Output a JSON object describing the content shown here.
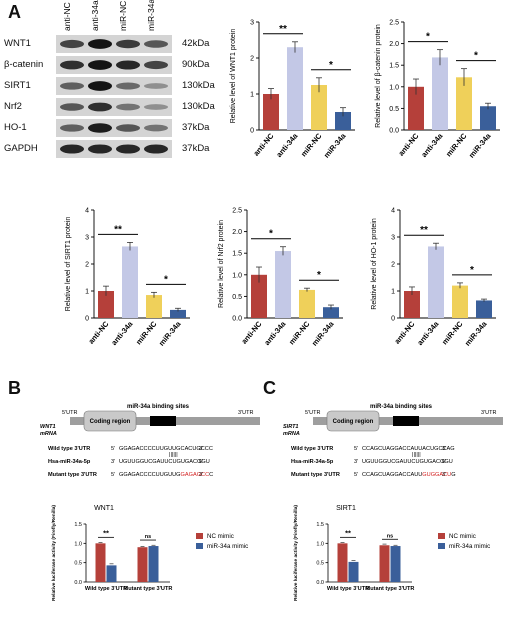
{
  "panels": {
    "a": "A",
    "b": "B",
    "c": "C"
  },
  "colors": {
    "anti_nc": "#b5403a",
    "anti_34a": "#c3c8e6",
    "mir_nc": "#efd05a",
    "mir_34a": "#3a5f9a",
    "nc_mimic": "#b5403a",
    "mir_mimic": "#3a5f9a"
  },
  "blot": {
    "lanes": [
      "anti-NC",
      "anti-34a",
      "miR-NC",
      "miR-34a"
    ],
    "rows": [
      {
        "protein": "WNT1",
        "size": "42kDa",
        "intensity": [
          0.7,
          0.95,
          0.75,
          0.6
        ]
      },
      {
        "protein": "β-catenin",
        "size": "90kDa",
        "intensity": [
          0.8,
          0.95,
          0.85,
          0.7
        ]
      },
      {
        "protein": "SIRT1",
        "size": "130kDa",
        "intensity": [
          0.55,
          0.95,
          0.5,
          0.3
        ]
      },
      {
        "protein": "Nrf2",
        "size": "130kDa",
        "intensity": [
          0.6,
          0.8,
          0.45,
          0.3
        ]
      },
      {
        "protein": "HO-1",
        "size": "37kDa",
        "intensity": [
          0.55,
          0.9,
          0.6,
          0.45
        ]
      },
      {
        "protein": "GAPDH",
        "size": "37kDa",
        "intensity": [
          0.85,
          0.85,
          0.85,
          0.85
        ]
      }
    ]
  },
  "chart_data": [
    {
      "type": "bar",
      "ylabel": "Relative level of WNT1 protein",
      "categories": [
        "anti-NC",
        "anti-34a",
        "miR-NC",
        "miR-34a"
      ],
      "values": [
        1.0,
        2.3,
        1.25,
        0.5
      ],
      "errors": [
        0.15,
        0.15,
        0.2,
        0.12
      ],
      "ylim": [
        0,
        3
      ],
      "yticks": [
        "0",
        "1",
        "2",
        "3"
      ],
      "sig": [
        {
          "label": "**",
          "pair": [
            0,
            1
          ]
        },
        {
          "label": "*",
          "pair": [
            2,
            3
          ]
        }
      ]
    },
    {
      "type": "bar",
      "ylabel": "Relative level of β-catenin protein",
      "categories": [
        "anti-NC",
        "anti-34a",
        "miR-NC",
        "miR-34a"
      ],
      "values": [
        1.0,
        1.68,
        1.22,
        0.55
      ],
      "errors": [
        0.18,
        0.18,
        0.2,
        0.07
      ],
      "ylim": [
        0,
        2.5
      ],
      "yticks": [
        "0.0",
        "0.5",
        "1.0",
        "1.5",
        "2.0",
        "2.5"
      ],
      "sig": [
        {
          "label": "*",
          "pair": [
            0,
            1
          ]
        },
        {
          "label": "*",
          "pair": [
            2,
            3
          ]
        }
      ]
    },
    {
      "type": "bar",
      "ylabel": "Relative level of SIRT1 protein",
      "categories": [
        "anti-NC",
        "anti-34a",
        "miR-NC",
        "miR-34a"
      ],
      "values": [
        1.0,
        2.65,
        0.85,
        0.3
      ],
      "errors": [
        0.18,
        0.15,
        0.1,
        0.06
      ],
      "ylim": [
        0,
        4
      ],
      "yticks": [
        "0",
        "1",
        "2",
        "3",
        "4"
      ],
      "sig": [
        {
          "label": "**",
          "pair": [
            0,
            1
          ]
        },
        {
          "label": "*",
          "pair": [
            2,
            3
          ]
        }
      ]
    },
    {
      "type": "bar",
      "ylabel": "Relative level of Nrf2 protein",
      "categories": [
        "anti-NC",
        "anti-34a",
        "miR-NC",
        "miR-34a"
      ],
      "values": [
        1.0,
        1.55,
        0.65,
        0.25
      ],
      "errors": [
        0.18,
        0.1,
        0.04,
        0.05
      ],
      "ylim": [
        0,
        2.5
      ],
      "yticks": [
        "0.0",
        "0.5",
        "1.0",
        "1.5",
        "2.0",
        "2.5"
      ],
      "sig": [
        {
          "label": "*",
          "pair": [
            0,
            1
          ]
        },
        {
          "label": "*",
          "pair": [
            2,
            3
          ]
        }
      ]
    },
    {
      "type": "bar",
      "ylabel": "Relative level of HO-1 protein",
      "categories": [
        "anti-NC",
        "anti-34a",
        "miR-NC",
        "miR-34a"
      ],
      "values": [
        1.0,
        2.65,
        1.2,
        0.65
      ],
      "errors": [
        0.15,
        0.12,
        0.1,
        0.05
      ],
      "ylim": [
        0,
        4
      ],
      "yticks": [
        "0",
        "1",
        "2",
        "3",
        "4"
      ],
      "sig": [
        {
          "label": "**",
          "pair": [
            0,
            1
          ]
        },
        {
          "label": "*",
          "pair": [
            2,
            3
          ]
        }
      ]
    },
    {
      "type": "bar",
      "title": "WNT1",
      "ylabel": "Relative luciferase activity (Firefly/Renilla)",
      "categories": [
        "Wild type 3'UTR",
        "Mutant type 3'UTR"
      ],
      "ylim": [
        0,
        1.5
      ],
      "yticks": [
        "0.0",
        "0.5",
        "1.0",
        "1.5"
      ],
      "series": [
        {
          "name": "NC mimic",
          "values": [
            1.0,
            0.9
          ],
          "errors": [
            0.02,
            0.02
          ]
        },
        {
          "name": "miR-34a mimic",
          "values": [
            0.43,
            0.93
          ],
          "errors": [
            0.04,
            0.02
          ]
        }
      ],
      "sig": [
        {
          "label": "**",
          "group": 0
        },
        {
          "label": "ns",
          "group": 1
        }
      ]
    },
    {
      "type": "bar",
      "title": "SIRT1",
      "ylabel": "Relative luciferase activity (Firefly/Renilla)",
      "categories": [
        "Wild type 3'UTR",
        "Mutant type 3'UTR"
      ],
      "ylim": [
        0,
        1.5
      ],
      "yticks": [
        "0.0",
        "0.5",
        "1.0",
        "1.5"
      ],
      "series": [
        {
          "name": "NC mimic",
          "values": [
            1.0,
            0.95
          ],
          "errors": [
            0.02,
            0.03
          ]
        },
        {
          "name": "miR-34a mimic",
          "values": [
            0.52,
            0.93
          ],
          "errors": [
            0.04,
            0.02
          ]
        }
      ],
      "sig": [
        {
          "label": "**",
          "group": 0
        },
        {
          "label": "ns",
          "group": 1
        }
      ]
    }
  ],
  "diagram_b": {
    "gene": "WNT1",
    "gene_sub": "mRNA",
    "utr5": "5'UTR",
    "utr3": "3'UTR",
    "coding": "Coding region",
    "binding": "miR-34a binding sites",
    "rows": [
      {
        "label": "Wild type 3'UTR",
        "end5": "5'",
        "seq": "GGAGACCCCUUGUUGCACUGCCC",
        "red": "",
        "tail": "",
        "end3": "3'"
      },
      {
        "label": "Hsa-miR-34a-5p",
        "end5": "3'",
        "seq": "UGUUGGUCGAUUCUGUGACGGU",
        "red": "",
        "tail": "",
        "end3": "5'"
      },
      {
        "label": "Mutant type 3'UTR",
        "end5": "5'",
        "seq": "GGAGACCCCUUGUUG",
        "red": "GAGAGCC",
        "tail": "C",
        "end3": "3'"
      }
    ],
    "pairs": "||||||"
  },
  "diagram_c": {
    "gene": "SIRT1",
    "gene_sub": "mRNA",
    "utr5": "5'UTR",
    "utr3": "3'UTR",
    "coding": "Coding region",
    "binding": "miR-34a binding sites",
    "rows": [
      {
        "label": "Wild type 3'UTR",
        "end5": "5'",
        "seq": "CCAGCUAGGACCAUUACUGCCAG",
        "red": "",
        "tail": "",
        "end3": "3'"
      },
      {
        "label": "Hsa-miR-34a-5p",
        "end5": "3'",
        "seq": "UGUUGGUCGAUUCUGUGACGGU",
        "red": "",
        "tail": "",
        "end3": "5'"
      },
      {
        "label": "Mutant type 3'UTR",
        "end5": "5'",
        "seq": "CCAGCUAGGACCAUU",
        "red": "GUGGACU",
        "tail": "G",
        "end3": "3'"
      }
    ],
    "pairs": "||||||"
  }
}
